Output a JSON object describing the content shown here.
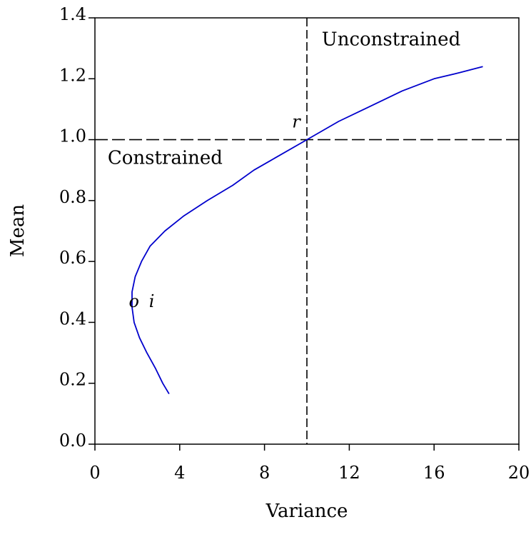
{
  "chart_data": {
    "type": "line",
    "title": "",
    "xlabel": "Variance",
    "ylabel": "Mean",
    "xlim": [
      0,
      20
    ],
    "ylim": [
      0,
      1.4
    ],
    "x_ticks": [
      "0",
      "4",
      "8",
      "12",
      "16",
      "20"
    ],
    "x_tick_values": [
      0,
      4,
      8,
      12,
      16,
      20
    ],
    "y_ticks": [
      "0.0",
      "0.2",
      "0.4",
      "0.6",
      "0.8",
      "1.0",
      "1.2",
      "1.4"
    ],
    "y_tick_values": [
      0,
      0.2,
      0.4,
      0.6,
      0.8,
      1.0,
      1.2,
      1.4
    ],
    "grid": false,
    "line_color": "#0000cc",
    "series": [
      {
        "x": [
          3.5,
          3.2,
          2.85,
          2.45,
          2.1,
          1.85,
          1.75,
          1.75,
          1.9,
          2.2,
          2.6,
          3.3,
          4.2,
          5.3,
          6.5,
          7.5,
          8.5,
          10.0,
          11.5,
          13.0,
          14.5,
          16.0,
          17.2,
          18.3
        ],
        "y": [
          0.165,
          0.2,
          0.25,
          0.3,
          0.35,
          0.4,
          0.45,
          0.5,
          0.55,
          0.6,
          0.65,
          0.7,
          0.75,
          0.8,
          0.85,
          0.9,
          0.94,
          1.0,
          1.06,
          1.11,
          1.16,
          1.2,
          1.22,
          1.24
        ]
      }
    ],
    "reference_lines": {
      "vertical_x": 10,
      "horizontal_y": 1.0,
      "style": "dashed",
      "color": "#000000"
    },
    "annotations": [
      {
        "text": "Unconstrained",
        "x": 10.7,
        "y": 1.31
      },
      {
        "text": "Constrained",
        "x": 0.6,
        "y": 0.92
      },
      {
        "text": "r",
        "x": 9.3,
        "y": 1.04
      },
      {
        "text": "o",
        "x": 1.6,
        "y": 0.45
      },
      {
        "text": "i",
        "x": 2.55,
        "y": 0.45
      }
    ]
  }
}
